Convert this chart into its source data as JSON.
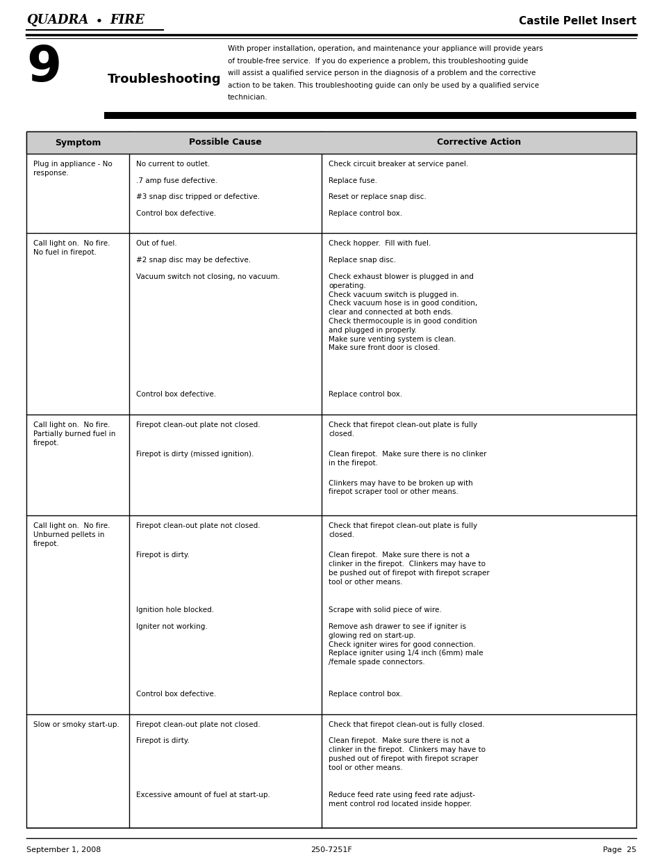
{
  "page_title": "Castile Pellet Insert",
  "brand": "QUADRA•FIRE",
  "section_number": "9",
  "section_title": "Troubleshooting",
  "section_intro": "With proper installation, operation, and maintenance your appliance will provide years\nof trouble-free service.  If you do experience a problem, this troubleshooting guide\nwill assist a qualified service person in the diagnosis of a problem and the corrective\naction to be taken. This troubleshooting guide can only be used by a qualified service\ntechnician.",
  "footer_left": "September 1, 2008",
  "footer_center": "250-7251F",
  "footer_right": "Page  25",
  "table_headers": [
    "Symptom",
    "Possible Cause",
    "Corrective Action"
  ],
  "rows": [
    {
      "symptom": [
        "Plug in appliance - No",
        "response."
      ],
      "pairs": [
        [
          "No current to outlet.",
          "Check circuit breaker at service panel."
        ],
        [
          ".7 amp fuse defective.",
          "Replace fuse."
        ],
        [
          "#3 snap disc tripped or defective.",
          "Reset or replace snap disc."
        ],
        [
          "Control box defective.",
          "Replace control box."
        ]
      ]
    },
    {
      "symptom": [
        "Call light on.  No fire.",
        "No fuel in firepot."
      ],
      "pairs": [
        [
          "Out of fuel.",
          "Check hopper.  Fill with fuel."
        ],
        [
          "#2 snap disc may be defective.",
          "Replace snap disc."
        ],
        [
          "Vacuum switch not closing, no vacuum.",
          "Check exhaust blower is plugged in and\noperating.\nCheck vacuum switch is plugged in.\nCheck vacuum hose is in good condition,\nclear and connected at both ends.\nCheck thermocouple is in good condition\nand plugged in properly.\nMake sure venting system is clean.\nMake sure front door is closed."
        ],
        [
          "Control box defective.",
          "Replace control box."
        ]
      ]
    },
    {
      "symptom": [
        "Call light on.  No fire.",
        "Partially burned fuel in",
        "firepot."
      ],
      "pairs": [
        [
          "Firepot clean-out plate not closed.",
          "Check that firepot clean-out plate is fully\nclosed."
        ],
        [
          "Firepot is dirty (missed ignition).",
          "Clean firepot.  Make sure there is no clinker\nin the firepot."
        ],
        [
          "",
          "Clinkers may have to be broken up with\nfirepot scraper tool or other means."
        ]
      ]
    },
    {
      "symptom": [
        "Call light on.  No fire.",
        "Unburned pellets in",
        "firepot."
      ],
      "pairs": [
        [
          "Firepot clean-out plate not closed.",
          "Check that firepot clean-out plate is fully\nclosed."
        ],
        [
          "Firepot is dirty.",
          "Clean firepot.  Make sure there is not a\nclinker in the firepot.  Clinkers may have to\nbe pushed out of firepot with firepot scraper\ntool or other means."
        ],
        [
          "Ignition hole blocked.",
          "Scrape with solid piece of wire."
        ],
        [
          "Igniter not working.",
          "Remove ash drawer to see if igniter is\nglowing red on start-up.\nCheck igniter wires for good connection.\nReplace igniter using 1/4 inch (6mm) male\n/female spade connectors."
        ],
        [
          "Control box defective.",
          "Replace control box."
        ]
      ]
    },
    {
      "symptom": [
        "Slow or smoky start-up."
      ],
      "pairs": [
        [
          "Firepot clean-out plate not closed.",
          "Check that firepot clean-out is fully closed."
        ],
        [
          "Firepot is dirty.",
          "Clean firepot.  Make sure there is not a\nclinker in the firepot.  Clinkers may have to\npushed out of firepot with firepot scraper\ntool or other means."
        ],
        [
          "Excessive amount of fuel at start-up.",
          "Reduce feed rate using feed rate adjust-\nment control rod located inside hopper."
        ]
      ]
    }
  ]
}
